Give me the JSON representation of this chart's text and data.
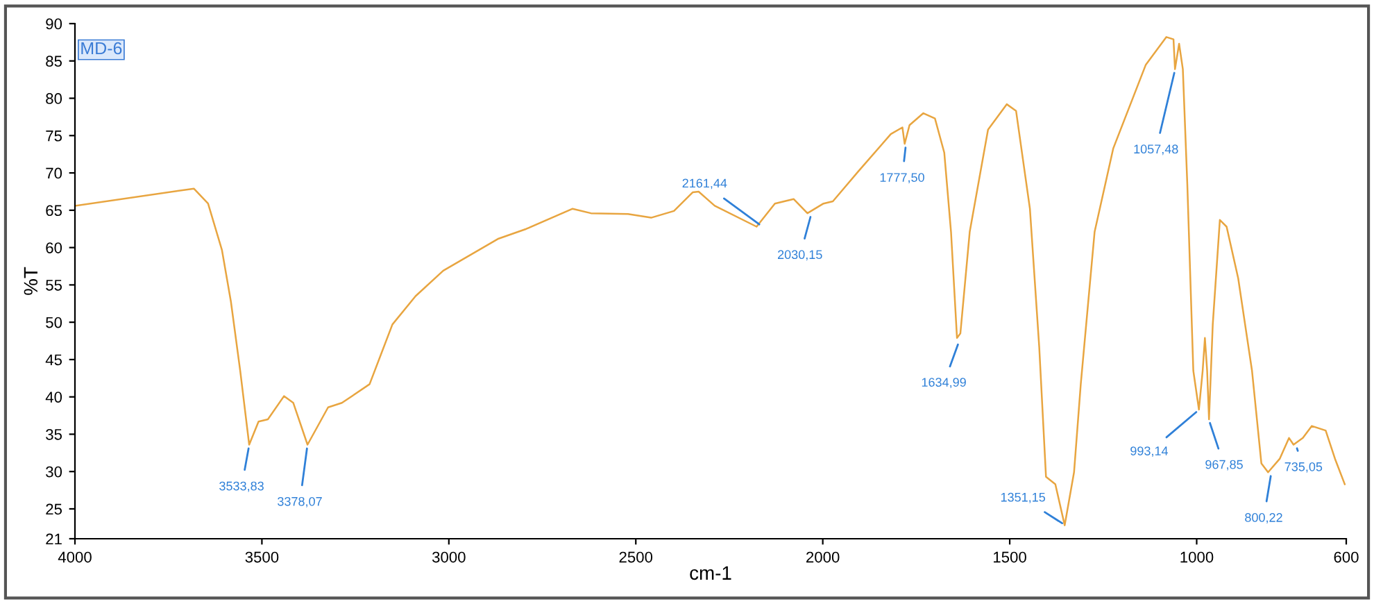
{
  "chart_data": {
    "type": "line",
    "title": "MD-6",
    "xlabel": "cm-1",
    "ylabel": "%T",
    "x": [
      4000,
      3682,
      3644,
      3607,
      3583,
      3558,
      3534,
      3509,
      3484,
      3441,
      3416,
      3378,
      3323,
      3286,
      3212,
      3151,
      3089,
      3015,
      2867,
      2793,
      2669,
      2620,
      2521,
      2459,
      2398,
      2348,
      2332,
      2289,
      2177,
      2128,
      2078,
      2041,
      1998,
      1973,
      1905,
      1818,
      1787,
      1781,
      1768,
      1731,
      1700,
      1675,
      1657,
      1641,
      1632,
      1607,
      1558,
      1508,
      1483,
      1446,
      1421,
      1403,
      1378,
      1353,
      1328,
      1310,
      1273,
      1223,
      1136,
      1081,
      1062,
      1058,
      1047,
      1037,
      1025,
      1009,
      994,
      984,
      978,
      972,
      967,
      957,
      938,
      920,
      889,
      852,
      827,
      809,
      778,
      753,
      741,
      716,
      692,
      655,
      630,
      604
    ],
    "series": [
      {
        "color": "#e8a540",
        "values": [
          65.6,
          67.9,
          65.9,
          59.7,
          52.8,
          43.5,
          33.6,
          36.7,
          37.0,
          40.1,
          39.2,
          33.6,
          38.6,
          39.2,
          41.7,
          49.7,
          53.5,
          56.9,
          61.2,
          62.5,
          65.2,
          64.6,
          64.5,
          64.0,
          64.9,
          67.4,
          67.5,
          65.6,
          62.8,
          65.9,
          66.5,
          64.6,
          65.9,
          66.2,
          70.2,
          75.2,
          76.1,
          73.9,
          76.4,
          78.0,
          77.3,
          72.7,
          62.1,
          47.9,
          48.5,
          62.1,
          75.8,
          79.2,
          78.3,
          65.2,
          46.6,
          29.3,
          28.3,
          22.8,
          29.9,
          41.7,
          62.1,
          73.3,
          84.5,
          88.2,
          87.9,
          83.9,
          87.3,
          83.9,
          68.4,
          43.5,
          38.3,
          43.5,
          47.9,
          43.5,
          37.0,
          49.7,
          63.7,
          62.8,
          55.9,
          43.5,
          31.1,
          29.9,
          31.7,
          34.5,
          33.6,
          34.5,
          36.1,
          35.5,
          31.7,
          28.3
        ]
      }
    ],
    "xlim": [
      4000,
      600
    ],
    "ylim": [
      21,
      90
    ],
    "xticks": [
      4000,
      3500,
      3000,
      2500,
      2000,
      1500,
      1000,
      600
    ],
    "yticks": [
      21,
      25,
      30,
      35,
      40,
      45,
      50,
      55,
      60,
      65,
      70,
      75,
      80,
      85,
      90
    ],
    "grid": false,
    "legend": false,
    "annotations": [
      {
        "text": "3533,83",
        "x": 3533.83,
        "y": 33.6
      },
      {
        "text": "3378,07",
        "x": 3378.07,
        "y": 33.6
      },
      {
        "text": "2161,44",
        "x": 2161.44,
        "y": 62.8
      },
      {
        "text": "2030,15",
        "x": 2030.15,
        "y": 64.6
      },
      {
        "text": "1777,50",
        "x": 1777.5,
        "y": 73.9
      },
      {
        "text": "1634,99",
        "x": 1634.99,
        "y": 47.5
      },
      {
        "text": "1351,15",
        "x": 1351.15,
        "y": 22.8
      },
      {
        "text": "1057,48",
        "x": 1057.48,
        "y": 83.9
      },
      {
        "text": "993,14",
        "x": 993.14,
        "y": 38.3
      },
      {
        "text": "967,85",
        "x": 967.85,
        "y": 37.0
      },
      {
        "text": "800,22",
        "x": 800.22,
        "y": 29.9
      },
      {
        "text": "735,05",
        "x": 735.05,
        "y": 33.6
      }
    ]
  }
}
